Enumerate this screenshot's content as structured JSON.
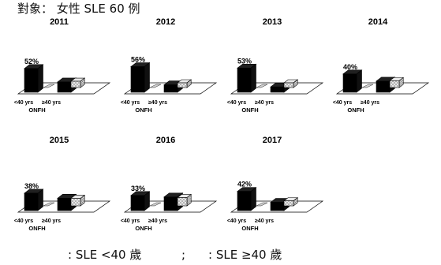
{
  "header": {
    "title": "對象： 女性 SLE 60 例"
  },
  "legend": {
    "item1": ": SLE <40 歲",
    "separator": ";",
    "item2": ": SLE ≥40 歲"
  },
  "colors": {
    "series1": "#000000",
    "series2": "#bdbdbd",
    "floor": "#ffffff"
  },
  "chart_data": [
    {
      "type": "bar",
      "title": "2011",
      "categories": [
        "<40 yrs",
        "≥40 yrs"
      ],
      "xlabel": "ONFH",
      "series": [
        {
          "name": "SLE <40 歲",
          "values": [
            52,
            0
          ]
        },
        {
          "name": "SLE ≥40 歲",
          "values": [
            0,
            25
          ]
        }
      ],
      "data_label": "52%"
    },
    {
      "type": "bar",
      "title": "2012",
      "categories": [
        "<40 yrs",
        "≥40 yrs"
      ],
      "xlabel": "ONFH",
      "series": [
        {
          "name": "SLE <40 歲",
          "values": [
            56,
            0
          ]
        },
        {
          "name": "SLE ≥40 歲",
          "values": [
            0,
            18
          ]
        }
      ],
      "data_label": "56%"
    },
    {
      "type": "bar",
      "title": "2013",
      "categories": [
        "<40 yrs",
        "≥40 yrs"
      ],
      "xlabel": "ONFH",
      "series": [
        {
          "name": "SLE <40 歲",
          "values": [
            53,
            0
          ]
        },
        {
          "name": "SLE ≥40 歲",
          "values": [
            0,
            13
          ]
        }
      ],
      "data_label": "53%"
    },
    {
      "type": "bar",
      "title": "2014",
      "categories": [
        "<40 yrs",
        "≥40 yrs"
      ],
      "xlabel": "ONFH",
      "series": [
        {
          "name": "SLE <40 歲",
          "values": [
            40,
            0
          ]
        },
        {
          "name": "SLE ≥40 歲",
          "values": [
            0,
            27
          ]
        }
      ],
      "data_label": "40%"
    },
    {
      "type": "bar",
      "title": "2015",
      "categories": [
        "<40 yrs",
        "≥40 yrs"
      ],
      "xlabel": "ONFH",
      "series": [
        {
          "name": "SLE <40 歲",
          "values": [
            38,
            0
          ]
        },
        {
          "name": "SLE ≥40 歲",
          "values": [
            0,
            30
          ]
        }
      ],
      "data_label": "38%"
    },
    {
      "type": "bar",
      "title": "2016",
      "categories": [
        "<40 yrs",
        "≥40 yrs"
      ],
      "xlabel": "ONFH",
      "series": [
        {
          "name": "SLE <40 歲",
          "values": [
            33,
            0
          ]
        },
        {
          "name": "SLE ≥40 歲",
          "values": [
            0,
            33
          ]
        }
      ],
      "data_label": "33%"
    },
    {
      "type": "bar",
      "title": "2017",
      "categories": [
        "<40 yrs",
        "≥40 yrs"
      ],
      "xlabel": "ONFH",
      "series": [
        {
          "name": "SLE <40 歲",
          "values": [
            42,
            0
          ]
        },
        {
          "name": "SLE ≥40 歲",
          "values": [
            0,
            20
          ]
        }
      ],
      "data_label": "42%"
    }
  ]
}
